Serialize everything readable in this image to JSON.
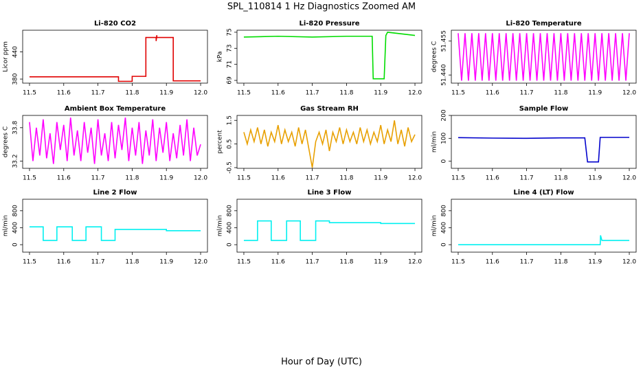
{
  "title": "SPL_110814  1 Hz Diagnostics Zoomed AM",
  "xlabel": "Hour of Day (UTC)",
  "chart_data": [
    {
      "type": "line",
      "title": "Li-820 CO2",
      "ylabel": "Licor ppm",
      "color": "#e00000",
      "x": [
        11.5,
        11.76,
        11.76,
        11.8,
        11.8,
        11.84,
        11.84,
        11.87,
        11.87,
        11.872,
        11.872,
        11.92,
        11.92,
        12.0
      ],
      "values": [
        385,
        385,
        375,
        375,
        386,
        386,
        472,
        472,
        464,
        477,
        472,
        472,
        376,
        376
      ],
      "xlim": [
        11.48,
        12.02
      ],
      "xticks": [
        11.5,
        11.6,
        11.7,
        11.8,
        11.9,
        {
          "value": 12,
          "label": "12.0"
        }
      ],
      "ylim": [
        371,
        488
      ],
      "yticks": [
        380,
        440
      ]
    },
    {
      "type": "line",
      "title": "Li-820 Pressure",
      "ylabel": "kPa",
      "color": "#00dd00",
      "x": [
        11.5,
        11.6,
        11.7,
        11.8,
        11.875,
        11.878,
        11.91,
        11.915,
        11.92,
        12.0
      ],
      "values": [
        74.4,
        74.5,
        74.4,
        74.5,
        74.5,
        69.2,
        69.2,
        74.6,
        75.0,
        74.6
      ],
      "xlim": [
        11.48,
        12.02
      ],
      "xticks": [
        11.5,
        11.6,
        11.7,
        11.8,
        11.9,
        {
          "value": 12,
          "label": "12.0"
        }
      ],
      "ylim": [
        68.66,
        75.25
      ],
      "yticks": [
        69,
        71,
        73,
        75
      ]
    },
    {
      "type": "line",
      "title": "Li-820 Temperature",
      "ylabel": "degrees C",
      "color": "#ff00ff",
      "x": [
        11.5,
        11.51,
        11.52,
        11.53,
        11.54,
        11.55,
        11.56,
        11.57,
        11.58,
        11.59,
        11.6,
        11.61,
        11.62,
        11.63,
        11.64,
        11.65,
        11.66,
        11.67,
        11.68,
        11.69,
        11.7,
        11.71,
        11.72,
        11.73,
        11.74,
        11.75,
        11.76,
        11.77,
        11.78,
        11.79,
        11.8,
        11.81,
        11.82,
        11.83,
        11.84,
        11.85,
        11.86,
        11.87,
        11.88,
        11.89,
        11.9,
        11.91,
        11.92,
        11.93,
        11.94,
        11.95,
        11.96,
        11.97,
        11.98,
        11.99,
        12.0
      ],
      "values": [
        51.4585,
        51.4375,
        51.4585,
        51.4375,
        51.4585,
        51.4375,
        51.4585,
        51.4375,
        51.4585,
        51.4375,
        51.4585,
        51.4375,
        51.4585,
        51.4375,
        51.4585,
        51.4375,
        51.4585,
        51.4375,
        51.4585,
        51.4375,
        51.4585,
        51.4375,
        51.4585,
        51.4375,
        51.4585,
        51.4375,
        51.4585,
        51.4375,
        51.4585,
        51.4375,
        51.4585,
        51.4375,
        51.4585,
        51.4375,
        51.4585,
        51.4375,
        51.4585,
        51.4375,
        51.4585,
        51.4375,
        51.4585,
        51.4375,
        51.4585,
        51.4375,
        51.4585,
        51.4375,
        51.4585,
        51.4375,
        51.4585,
        51.4375,
        51.4585
      ],
      "xlim": [
        11.48,
        12.02
      ],
      "xticks": [
        11.5,
        11.6,
        11.7,
        11.8,
        11.9,
        {
          "value": 12,
          "label": "12.0"
        }
      ],
      "ylim": [
        51.4364,
        51.4598
      ],
      "yticks": [
        {
          "value": 51.44,
          "label": "51.440"
        },
        {
          "value": 51.455,
          "label": "51.455"
        }
      ]
    },
    {
      "type": "line",
      "title": "Ambient Box Temperature",
      "ylabel": "degrees C",
      "color": "#ff00ff",
      "x": [
        11.5,
        11.51,
        11.52,
        11.53,
        11.54,
        11.55,
        11.56,
        11.57,
        11.58,
        11.59,
        11.6,
        11.61,
        11.62,
        11.63,
        11.64,
        11.65,
        11.66,
        11.67,
        11.68,
        11.69,
        11.7,
        11.71,
        11.72,
        11.73,
        11.74,
        11.75,
        11.76,
        11.77,
        11.78,
        11.79,
        11.8,
        11.81,
        11.82,
        11.83,
        11.84,
        11.85,
        11.86,
        11.87,
        11.88,
        11.89,
        11.9,
        11.91,
        11.92,
        11.93,
        11.94,
        11.95,
        11.96,
        11.97,
        11.98,
        11.99,
        12.0
      ],
      "values": [
        33.9,
        33.2,
        33.8,
        33.3,
        33.95,
        33.25,
        33.7,
        33.15,
        33.9,
        33.4,
        33.85,
        33.2,
        33.98,
        33.3,
        33.75,
        33.2,
        33.9,
        33.35,
        33.8,
        33.15,
        33.95,
        33.3,
        33.7,
        33.2,
        33.9,
        33.25,
        33.85,
        33.4,
        33.98,
        33.2,
        33.8,
        33.3,
        33.9,
        33.15,
        33.75,
        33.3,
        33.95,
        33.2,
        33.8,
        33.35,
        33.9,
        33.2,
        33.7,
        33.25,
        33.85,
        33.3,
        33.95,
        33.2,
        33.8,
        33.3,
        33.5
      ],
      "xlim": [
        11.48,
        12.02
      ],
      "xticks": [
        11.5,
        11.6,
        11.7,
        11.8,
        11.9,
        {
          "value": 12,
          "label": "12.0"
        }
      ],
      "ylim": [
        33.07,
        34.02
      ],
      "yticks": [
        33.2,
        33.8
      ]
    },
    {
      "type": "line",
      "title": "Gas Stream RH",
      "ylabel": "percent",
      "color": "#e8a000",
      "x": [
        11.5,
        11.51,
        11.52,
        11.53,
        11.54,
        11.55,
        11.56,
        11.57,
        11.58,
        11.59,
        11.6,
        11.61,
        11.62,
        11.63,
        11.64,
        11.65,
        11.66,
        11.67,
        11.68,
        11.69,
        11.7,
        11.71,
        11.72,
        11.73,
        11.74,
        11.75,
        11.76,
        11.77,
        11.78,
        11.79,
        11.8,
        11.81,
        11.82,
        11.83,
        11.84,
        11.85,
        11.86,
        11.87,
        11.88,
        11.89,
        11.9,
        11.91,
        11.92,
        11.93,
        11.94,
        11.95,
        11.96,
        11.97,
        11.98,
        11.99,
        12.0
      ],
      "values": [
        1.0,
        0.5,
        1.1,
        0.6,
        1.2,
        0.5,
        1.1,
        0.4,
        1.0,
        0.6,
        1.3,
        0.5,
        1.1,
        0.6,
        1.0,
        0.4,
        1.2,
        0.5,
        1.1,
        0.3,
        -0.5,
        0.6,
        1.0,
        0.5,
        1.1,
        0.2,
        1.0,
        0.6,
        1.2,
        0.5,
        1.1,
        0.6,
        1.0,
        0.5,
        1.2,
        0.6,
        1.1,
        0.5,
        1.0,
        0.6,
        1.3,
        0.5,
        1.1,
        0.6,
        1.5,
        0.5,
        1.1,
        0.4,
        1.2,
        0.6,
        0.9
      ],
      "xlim": [
        11.48,
        12.02
      ],
      "xticks": [
        11.5,
        11.6,
        11.7,
        11.8,
        11.9,
        {
          "value": 12,
          "label": "12.0"
        }
      ],
      "ylim": [
        -0.53,
        1.71
      ],
      "yticks": [
        -0.5,
        0.5,
        1.5
      ]
    },
    {
      "type": "line",
      "title": "Sample Flow",
      "ylabel": "ml/min",
      "color": "#0000cc",
      "x": [
        11.5,
        11.6,
        11.7,
        11.8,
        11.87,
        11.878,
        11.91,
        11.915,
        12.0
      ],
      "values": [
        103,
        101,
        100,
        102,
        102,
        -3,
        -3,
        104,
        104
      ],
      "xlim": [
        11.48,
        12.02
      ],
      "xticks": [
        11.5,
        11.6,
        11.7,
        11.8,
        11.9,
        {
          "value": 12,
          "label": "12.0"
        }
      ],
      "ylim": [
        -31,
        200
      ],
      "yticks": [
        0,
        100,
        200
      ]
    },
    {
      "type": "line",
      "title": "Line 2 Flow",
      "ylabel": "ml/min",
      "color": "#00f0f0",
      "x": [
        11.5,
        11.54,
        11.54,
        11.58,
        11.58,
        11.625,
        11.625,
        11.665,
        11.665,
        11.71,
        11.71,
        11.75,
        11.75,
        11.9,
        11.9,
        12.0
      ],
      "values": [
        420,
        420,
        100,
        100,
        420,
        420,
        100,
        100,
        420,
        420,
        100,
        100,
        360,
        360,
        330,
        330
      ],
      "xlim": [
        11.48,
        12.02
      ],
      "xticks": [
        11.5,
        11.6,
        11.7,
        11.8,
        11.9,
        {
          "value": 12,
          "label": "12.0"
        }
      ],
      "ylim": [
        -176,
        1072
      ],
      "yticks": [
        0,
        400,
        800
      ]
    },
    {
      "type": "line",
      "title": "Line 3 Flow",
      "ylabel": "ml/min",
      "color": "#00f0f0",
      "x": [
        11.5,
        11.54,
        11.54,
        11.58,
        11.58,
        11.625,
        11.625,
        11.665,
        11.665,
        11.71,
        11.71,
        11.75,
        11.75,
        11.9,
        11.9,
        12.0
      ],
      "values": [
        100,
        100,
        560,
        560,
        100,
        100,
        560,
        560,
        100,
        100,
        560,
        560,
        520,
        520,
        500,
        500
      ],
      "xlim": [
        11.48,
        12.02
      ],
      "xticks": [
        11.5,
        11.6,
        11.7,
        11.8,
        11.9,
        {
          "value": 12,
          "label": "12.0"
        }
      ],
      "ylim": [
        -176,
        1072
      ],
      "yticks": [
        0,
        400,
        800
      ]
    },
    {
      "type": "line",
      "title": "Line 4 (LT) Flow",
      "ylabel": "ml/min",
      "color": "#00f0f0",
      "x": [
        11.5,
        11.915,
        11.916,
        11.92,
        12.0
      ],
      "values": [
        0,
        0,
        220,
        100,
        100
      ],
      "xlim": [
        11.48,
        12.02
      ],
      "xticks": [
        11.5,
        11.6,
        11.7,
        11.8,
        11.9,
        {
          "value": 12,
          "label": "12.0"
        }
      ],
      "ylim": [
        -176,
        1072
      ],
      "yticks": [
        0,
        400,
        800
      ]
    }
  ]
}
